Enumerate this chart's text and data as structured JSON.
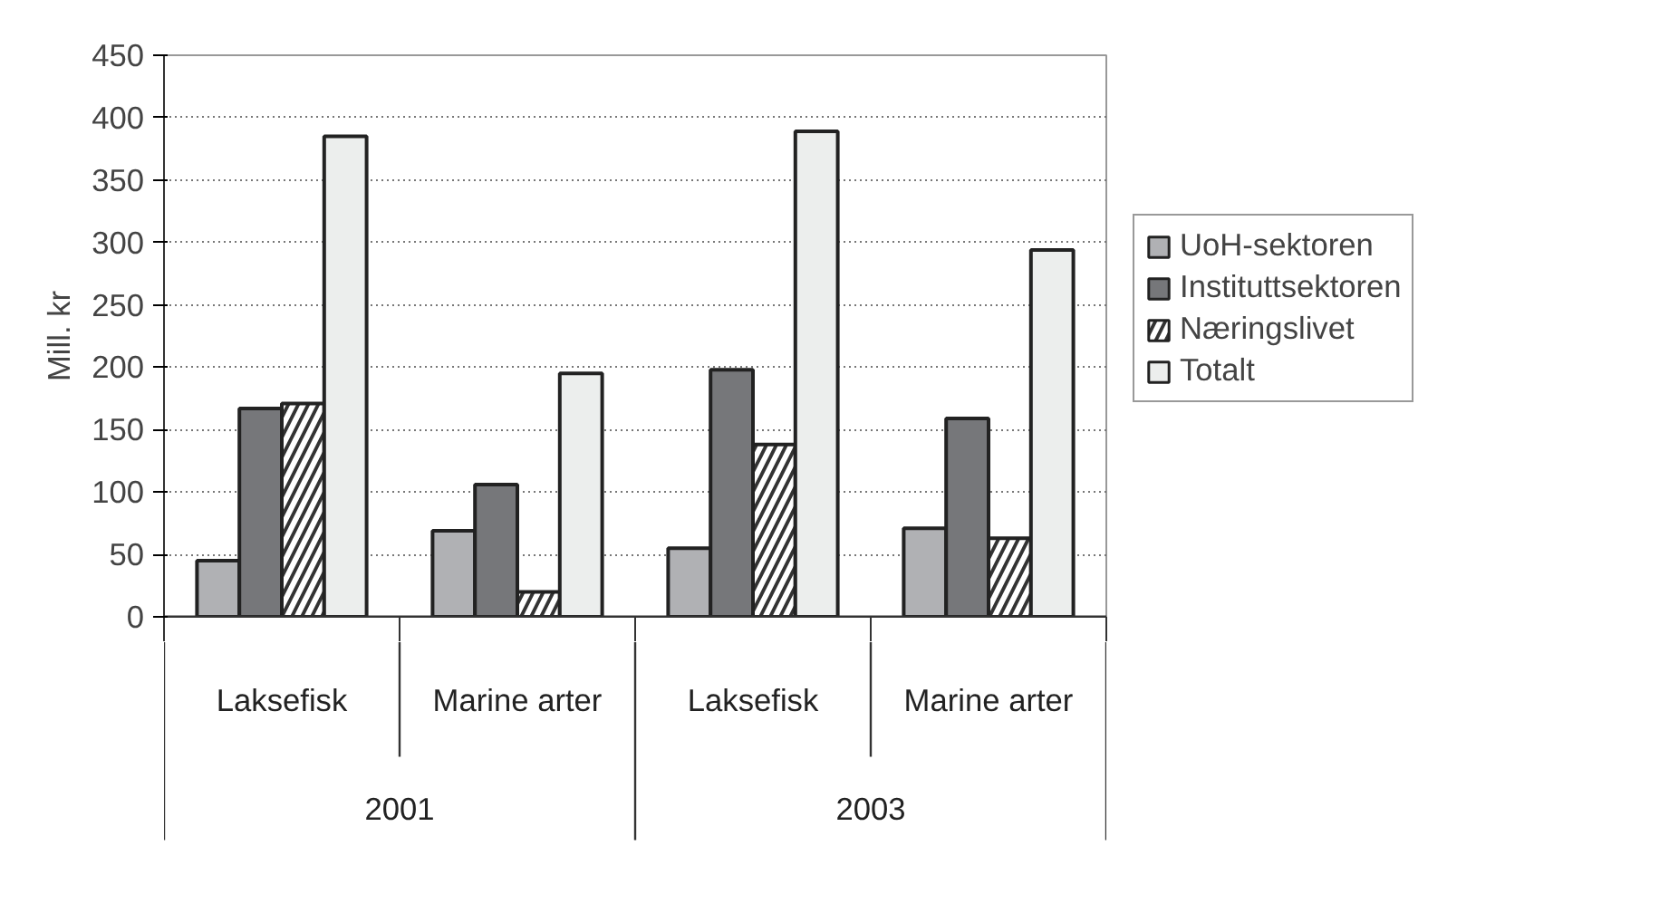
{
  "chart_data": {
    "type": "bar",
    "ylabel": "Mill. kr",
    "categories": [
      "Laksefisk",
      "Marine arter",
      "Laksefisk",
      "Marine arter"
    ],
    "annotations": [
      "2001",
      "2003"
    ],
    "series": [
      {
        "name": "UoH-sektoren",
        "color": "#b0b1b4",
        "values": [
          45,
          69,
          55,
          71
        ]
      },
      {
        "name": "Instituttsektoren",
        "color": "#76777a",
        "values": [
          167,
          106,
          198,
          159
        ]
      },
      {
        "name": "Næringslivet",
        "color": "#333333",
        "values": [
          171,
          20,
          138,
          63
        ]
      },
      {
        "name": "Totalt",
        "color": "#eceeed",
        "values": [
          385,
          195,
          389,
          294
        ]
      }
    ],
    "ylim": [
      0,
      450
    ],
    "yticks": [
      0,
      50,
      100,
      150,
      200,
      250,
      300,
      350,
      400,
      450
    ],
    "grid": "y",
    "legend": "right"
  }
}
